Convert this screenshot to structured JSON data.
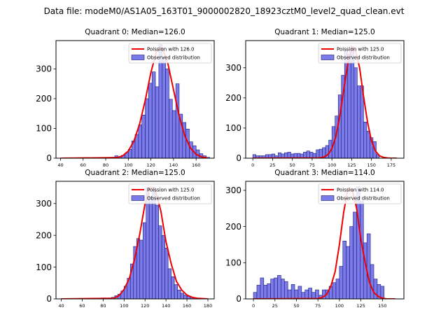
{
  "figure": {
    "suptitle": "Data file: modeM0/AS1A05_163T01_9000002820_18923cztM0_level2_quad_clean.evt"
  },
  "chart_data": [
    {
      "type": "bar",
      "title": "Quadrant 0: Median=126.0",
      "legend": [
        "Poission with 126.0",
        "Observed distribution"
      ],
      "legend_position": "top-right",
      "xlim": [
        36,
        176
      ],
      "ylim": [
        0,
        395
      ],
      "xticks": [
        40,
        60,
        80,
        100,
        120,
        140,
        160
      ],
      "yticks": [
        0,
        100,
        200,
        300
      ],
      "bin_width": 3,
      "bin_starts": [
        85,
        88,
        91,
        94,
        97,
        100,
        103,
        106,
        109,
        112,
        115,
        118,
        121,
        124,
        127,
        130,
        133,
        136,
        139,
        142,
        145,
        148,
        151,
        154,
        157,
        160,
        163,
        166,
        169
      ],
      "counts": [
        3,
        8,
        5,
        10,
        18,
        30,
        58,
        80,
        112,
        145,
        200,
        252,
        290,
        240,
        382,
        340,
        300,
        198,
        160,
        250,
        148,
        120,
        98,
        55,
        42,
        28,
        15,
        8,
        3
      ],
      "poisson": {
        "mean": 126,
        "x": [
          40,
          90,
          95,
          100,
          105,
          110,
          115,
          120,
          125,
          130,
          135,
          140,
          145,
          150,
          155,
          160,
          165,
          170
        ],
        "y": [
          0,
          2,
          8,
          24,
          58,
          115,
          195,
          288,
          360,
          372,
          318,
          230,
          142,
          75,
          34,
          13,
          4,
          1
        ]
      }
    },
    {
      "type": "bar",
      "title": "Quadrant 1: Median=125.0",
      "legend": [
        "Poission with 125.0",
        "Observed distribution"
      ],
      "legend_position": "top-right",
      "xlim": [
        -9,
        191
      ],
      "ylim": [
        0,
        390
      ],
      "xticks": [
        0,
        25,
        50,
        75,
        100,
        125,
        150,
        175
      ],
      "yticks": [
        0,
        100,
        200,
        300
      ],
      "bin_width": 4,
      "bin_starts": [
        0,
        4,
        8,
        12,
        16,
        20,
        24,
        28,
        32,
        36,
        40,
        44,
        48,
        52,
        56,
        60,
        64,
        68,
        72,
        76,
        80,
        84,
        88,
        92,
        96,
        100,
        104,
        108,
        112,
        116,
        120,
        124,
        128,
        132,
        136,
        140,
        144,
        148,
        152,
        156
      ],
      "counts": [
        12,
        8,
        8,
        8,
        12,
        12,
        14,
        8,
        18,
        14,
        18,
        20,
        14,
        16,
        16,
        14,
        20,
        24,
        20,
        16,
        28,
        30,
        35,
        42,
        60,
        105,
        140,
        210,
        275,
        360,
        345,
        370,
        300,
        240,
        240,
        120,
        90,
        68,
        55,
        12
      ],
      "poisson": {
        "mean": 125,
        "x": [
          0,
          85,
          90,
          95,
          100,
          105,
          110,
          115,
          120,
          125,
          130,
          135,
          140,
          145,
          150,
          155,
          160,
          165,
          170,
          175,
          182
        ],
        "y": [
          0,
          1,
          4,
          12,
          32,
          72,
          140,
          228,
          312,
          370,
          355,
          300,
          205,
          120,
          58,
          24,
          8,
          3,
          1,
          0,
          0
        ]
      }
    },
    {
      "type": "bar",
      "title": "Quadrant 2: Median=125.0",
      "legend": [
        "Poission with 125.0",
        "Observed distribution"
      ],
      "legend_position": "top-right",
      "xlim": [
        35,
        186
      ],
      "ylim": [
        0,
        370
      ],
      "xticks": [
        40,
        60,
        80,
        100,
        120,
        140,
        160,
        180
      ],
      "yticks": [
        0,
        100,
        200,
        300
      ],
      "bin_width": 3,
      "bin_starts": [
        76,
        79,
        82,
        85,
        88,
        91,
        94,
        97,
        100,
        103,
        106,
        109,
        112,
        115,
        118,
        121,
        124,
        127,
        130,
        133,
        136,
        139,
        142,
        145,
        148,
        151,
        154,
        157,
        160,
        163,
        166,
        169
      ],
      "counts": [
        2,
        3,
        2,
        3,
        5,
        10,
        15,
        25,
        40,
        65,
        110,
        165,
        190,
        185,
        240,
        350,
        320,
        350,
        295,
        230,
        200,
        160,
        95,
        70,
        45,
        28,
        18,
        12,
        8,
        5,
        3,
        2
      ],
      "poisson": {
        "mean": 125,
        "x": [
          40,
          90,
          95,
          100,
          105,
          110,
          115,
          120,
          125,
          130,
          135,
          140,
          145,
          150,
          155,
          160,
          165,
          170,
          175,
          180
        ],
        "y": [
          0,
          2,
          10,
          30,
          65,
          125,
          205,
          300,
          352,
          340,
          278,
          180,
          110,
          55,
          28,
          12,
          5,
          2,
          1,
          0
        ]
      }
    },
    {
      "type": "bar",
      "title": "Quadrant 3: Median=114.0",
      "legend": [
        "Poission with 114.0",
        "Observed distribution"
      ],
      "legend_position": "top-right",
      "xlim": [
        -9,
        175
      ],
      "ylim": [
        0,
        325
      ],
      "xticks": [
        0,
        25,
        50,
        75,
        100,
        125,
        150
      ],
      "yticks": [
        0,
        100,
        200,
        300
      ],
      "bin_width": 4,
      "bin_starts": [
        0,
        4,
        8,
        12,
        16,
        20,
        24,
        28,
        32,
        36,
        40,
        44,
        48,
        52,
        56,
        60,
        64,
        68,
        72,
        76,
        80,
        84,
        88,
        92,
        96,
        100,
        104,
        108,
        112,
        116,
        120,
        124,
        128,
        132,
        136,
        140,
        144,
        148
      ],
      "counts": [
        18,
        38,
        58,
        38,
        42,
        55,
        58,
        65,
        55,
        48,
        25,
        40,
        25,
        35,
        18,
        25,
        30,
        18,
        25,
        10,
        25,
        25,
        35,
        45,
        55,
        90,
        160,
        145,
        200,
        240,
        310,
        270,
        155,
        180,
        95,
        55,
        40,
        35
      ],
      "poisson": {
        "mean": 114,
        "x": [
          0,
          75,
          80,
          85,
          90,
          95,
          100,
          105,
          110,
          115,
          120,
          125,
          130,
          135,
          140,
          145,
          150,
          155,
          165
        ],
        "y": [
          0,
          1,
          4,
          12,
          35,
          75,
          150,
          240,
          305,
          300,
          250,
          165,
          100,
          45,
          18,
          7,
          2,
          0,
          0
        ]
      }
    }
  ]
}
